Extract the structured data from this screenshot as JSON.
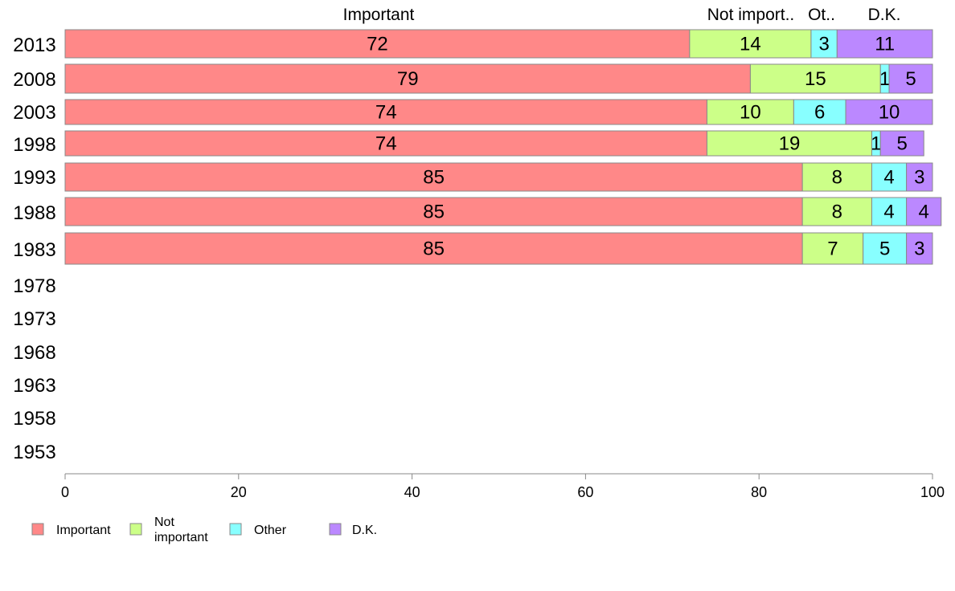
{
  "chart_data": {
    "type": "bar",
    "orientation": "horizontal",
    "stacked": true,
    "categories": [
      "2013",
      "2008",
      "2003",
      "1998",
      "1993",
      "1988",
      "1983",
      "1978",
      "1973",
      "1968",
      "1963",
      "1958",
      "1953"
    ],
    "series": [
      {
        "name": "Important",
        "color": "#ff8888",
        "values": [
          72,
          79,
          74,
          74,
          85,
          85,
          85,
          null,
          null,
          null,
          null,
          null,
          null
        ]
      },
      {
        "name": "Not important",
        "color": "#ccff88",
        "values": [
          14,
          15,
          10,
          19,
          8,
          8,
          7,
          null,
          null,
          null,
          null,
          null,
          null
        ]
      },
      {
        "name": "Other",
        "color": "#88ffff",
        "values": [
          3,
          1,
          6,
          1,
          4,
          4,
          5,
          null,
          null,
          null,
          null,
          null,
          null
        ]
      },
      {
        "name": "D.K.",
        "color": "#bb88ff",
        "values": [
          11,
          5,
          10,
          5,
          3,
          4,
          3,
          null,
          null,
          null,
          null,
          null,
          null
        ]
      }
    ],
    "header_labels": [
      "Important",
      "Not import..",
      "Ot..",
      "D.K."
    ],
    "legend_labels": [
      [
        "Important"
      ],
      [
        "Not",
        "important"
      ],
      [
        "Other"
      ],
      [
        "D.K."
      ]
    ],
    "xlim": [
      0,
      100
    ],
    "xticks": [
      0,
      20,
      40,
      60,
      80,
      100
    ],
    "grid": false,
    "legend_position": "bottom-left"
  }
}
